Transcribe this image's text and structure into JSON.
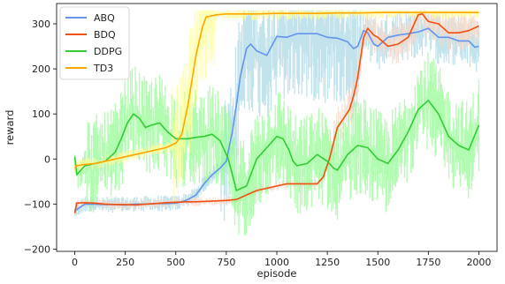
{
  "chart_data": {
    "type": "line",
    "title": "",
    "xlabel": "episode",
    "ylabel": "reward",
    "xlim": [
      -90,
      2090
    ],
    "ylim": [
      -205,
      345
    ],
    "xticks": [
      0,
      250,
      500,
      750,
      1000,
      1250,
      1500,
      1750,
      2000
    ],
    "yticks": [
      -200,
      -100,
      0,
      100,
      200,
      300
    ],
    "grid": false,
    "legend": "top-left",
    "series": [
      {
        "name": "ABQ",
        "color": "#6495ed",
        "band_color": "#add8e6",
        "x": [
          0,
          50,
          100,
          150,
          200,
          250,
          300,
          350,
          400,
          450,
          500,
          530,
          560,
          600,
          640,
          680,
          720,
          750,
          780,
          800,
          820,
          850,
          870,
          900,
          950,
          1000,
          1050,
          1100,
          1150,
          1200,
          1250,
          1300,
          1350,
          1380,
          1400,
          1430,
          1450,
          1480,
          1500,
          1550,
          1600,
          1650,
          1700,
          1750,
          1800,
          1850,
          1900,
          1950,
          1980,
          2000
        ],
        "y": [
          -115,
          -100,
          -100,
          -101,
          -101,
          -102,
          -100,
          -100,
          -99,
          -99,
          -98,
          -95,
          -90,
          -80,
          -55,
          -35,
          -20,
          -5,
          60,
          120,
          185,
          245,
          255,
          240,
          230,
          272,
          270,
          278,
          278,
          278,
          270,
          268,
          260,
          245,
          250,
          285,
          280,
          255,
          250,
          270,
          275,
          278,
          282,
          290,
          270,
          270,
          262,
          262,
          248,
          250
        ]
      },
      {
        "name": "BDQ",
        "color": "#f05010",
        "band_color": "#f8d8c8",
        "x": [
          0,
          10,
          50,
          100,
          150,
          200,
          250,
          300,
          350,
          400,
          450,
          500,
          550,
          600,
          650,
          700,
          750,
          800,
          850,
          900,
          950,
          1000,
          1050,
          1100,
          1150,
          1200,
          1230,
          1260,
          1300,
          1330,
          1360,
          1380,
          1400,
          1430,
          1450,
          1480,
          1500,
          1550,
          1600,
          1650,
          1700,
          1720,
          1750,
          1800,
          1850,
          1900,
          1950,
          2000
        ],
        "y": [
          -120,
          -98,
          -97,
          -98,
          -100,
          -101,
          -101,
          -102,
          -100,
          -99,
          -97,
          -96,
          -95,
          -95,
          -94,
          -93,
          -92,
          -90,
          -80,
          -70,
          -65,
          -60,
          -55,
          -55,
          -55,
          -55,
          -40,
          0,
          70,
          90,
          110,
          140,
          180,
          270,
          290,
          275,
          270,
          250,
          255,
          270,
          320,
          322,
          305,
          300,
          280,
          280,
          285,
          295
        ]
      },
      {
        "name": "DDPG",
        "color": "#33cc33",
        "band_color": "#98fb98",
        "x": [
          0,
          10,
          50,
          100,
          150,
          200,
          230,
          260,
          290,
          320,
          350,
          380,
          420,
          460,
          500,
          560,
          600,
          640,
          680,
          720,
          760,
          800,
          850,
          900,
          950,
          1000,
          1030,
          1060,
          1080,
          1100,
          1150,
          1200,
          1250,
          1280,
          1300,
          1350,
          1400,
          1450,
          1500,
          1550,
          1600,
          1650,
          1700,
          1750,
          1800,
          1850,
          1900,
          1950,
          2000
        ],
        "y": [
          5,
          -35,
          -15,
          -10,
          -5,
          15,
          45,
          80,
          100,
          90,
          70,
          75,
          80,
          60,
          45,
          45,
          48,
          50,
          55,
          40,
          0,
          -70,
          -60,
          0,
          25,
          50,
          45,
          20,
          -5,
          -15,
          -10,
          10,
          -5,
          -20,
          -25,
          10,
          30,
          25,
          0,
          -10,
          20,
          60,
          110,
          130,
          100,
          50,
          30,
          20,
          75
        ]
      },
      {
        "name": "TD3",
        "color": "#ffa500",
        "band_color": "#ffff99",
        "x": [
          0,
          10,
          50,
          100,
          150,
          200,
          250,
          300,
          350,
          400,
          450,
          500,
          530,
          560,
          600,
          630,
          650,
          680,
          700,
          750,
          800,
          900,
          1000,
          1100,
          1200,
          1300,
          1400,
          1500,
          1600,
          1700,
          1800,
          1900,
          2000
        ],
        "y": [
          -20,
          -15,
          -12,
          -10,
          -5,
          0,
          5,
          10,
          15,
          20,
          25,
          35,
          55,
          120,
          230,
          290,
          315,
          318,
          320,
          322,
          322,
          322,
          323,
          323,
          323,
          324,
          324,
          325,
          325,
          325,
          325,
          325,
          325
        ]
      }
    ]
  }
}
